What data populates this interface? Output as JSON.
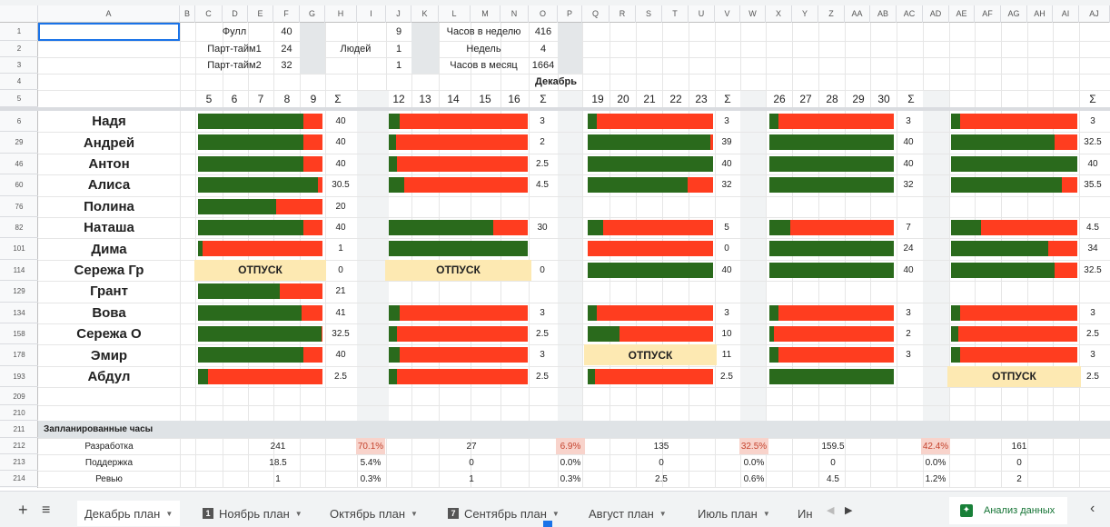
{
  "columns": [
    "A",
    "B",
    "C",
    "D",
    "E",
    "F",
    "G",
    "H",
    "I",
    "J",
    "K",
    "L",
    "M",
    "N",
    "O",
    "P",
    "Q",
    "R",
    "S",
    "T",
    "U",
    "V",
    "W",
    "X",
    "Y",
    "Z",
    "AA",
    "AB",
    "AC",
    "AD",
    "AE",
    "AF",
    "AG",
    "AH",
    "AI",
    "AJ"
  ],
  "header_rows": [
    "1",
    "2",
    "3",
    "4",
    "5"
  ],
  "params": {
    "full_label": "Фулл",
    "full_val": "40",
    "pt1_label": "Парт-тайм1",
    "pt1_val": "24",
    "pt2_label": "Парт-тайм2",
    "pt2_val": "32",
    "people_label": "Людей",
    "people": [
      "9",
      "1",
      "1"
    ],
    "hpw_label": "Часов в неделю",
    "hpw_val": "416",
    "weeks_label": "Недель",
    "weeks_val": "4",
    "hpm_label": "Часов в месяц",
    "hpm_val": "1664",
    "month": "Декабрь"
  },
  "weeks": [
    {
      "days": [
        "5",
        "6",
        "7",
        "8",
        "9"
      ],
      "sigma": "Σ"
    },
    {
      "days": [
        "12",
        "13",
        "14",
        "15",
        "16"
      ],
      "sigma": "Σ"
    },
    {
      "days": [
        "19",
        "20",
        "21",
        "22",
        "23"
      ],
      "sigma": "Σ"
    },
    {
      "days": [
        "26",
        "27",
        "28",
        "29",
        "30"
      ],
      "sigma": "Σ"
    },
    {
      "days": [],
      "sigma": "Σ"
    }
  ],
  "vacation_label": "ОТПУСК",
  "colors": {
    "green": "#2a6a1c",
    "red": "#ff3d1f",
    "vacation": "#fde9b2"
  },
  "people": [
    {
      "row": "6",
      "name": "Надя",
      "weeks": [
        {
          "g": 0.85,
          "s": "40"
        },
        {
          "g": 0.08,
          "s": "3"
        },
        {
          "g": 0.07,
          "s": "3"
        },
        {
          "g": 0.07,
          "s": "3"
        },
        {
          "g": 0.07,
          "s": "3"
        }
      ]
    },
    {
      "row": "29",
      "name": "Андрей",
      "weeks": [
        {
          "g": 0.85,
          "s": "40"
        },
        {
          "g": 0.05,
          "s": "2"
        },
        {
          "g": 0.98,
          "s": "39"
        },
        {
          "g": 1,
          "s": "40"
        },
        {
          "g": 0.82,
          "s": "32.5"
        }
      ]
    },
    {
      "row": "46",
      "name": "Антон",
      "weeks": [
        {
          "g": 0.85,
          "s": "40"
        },
        {
          "g": 0.06,
          "s": "2.5"
        },
        {
          "g": 1,
          "s": "40"
        },
        {
          "g": 1,
          "s": "40"
        },
        {
          "g": 1,
          "s": "40"
        }
      ]
    },
    {
      "row": "60",
      "name": "Алиса",
      "weeks": [
        {
          "g": 0.96,
          "s": "30.5"
        },
        {
          "g": 0.11,
          "s": "4.5"
        },
        {
          "g": 0.8,
          "s": "32"
        },
        {
          "g": 1,
          "s": "32"
        },
        {
          "g": 0.88,
          "s": "35.5"
        }
      ]
    },
    {
      "row": "76",
      "name": "Полина",
      "weeks": [
        {
          "g": 0.63,
          "s": "20"
        },
        null,
        null,
        null,
        null
      ]
    },
    {
      "row": "82",
      "name": "Наташа",
      "weeks": [
        {
          "g": 0.85,
          "s": "40"
        },
        {
          "g": 0.75,
          "s": "30"
        },
        {
          "g": 0.12,
          "s": "5"
        },
        {
          "g": 0.17,
          "s": "7"
        },
        {
          "g": 0.24,
          "s": "4.5"
        }
      ]
    },
    {
      "row": "101",
      "name": "Дима",
      "weeks": [
        {
          "g": 0.04,
          "s": "1"
        },
        {
          "g": 1,
          "s": ""
        },
        {
          "g": 0,
          "s": "0"
        },
        {
          "g": 1,
          "s": "24"
        },
        {
          "g": 0.77,
          "s": "34"
        }
      ]
    },
    {
      "row": "114",
      "name": "Сережа Гр",
      "weeks": [
        {
          "vac": true,
          "s": "0"
        },
        {
          "vac": true,
          "s": "0"
        },
        {
          "g": 1,
          "s": "40"
        },
        {
          "g": 1,
          "s": "40"
        },
        {
          "g": 0.82,
          "s": "32.5"
        }
      ]
    },
    {
      "row": "129",
      "name": "Грант",
      "weeks": [
        {
          "g": 0.66,
          "s": "21"
        },
        null,
        null,
        null,
        null
      ]
    },
    {
      "row": "134",
      "name": "Вова",
      "weeks": [
        {
          "g": 0.83,
          "s": "41"
        },
        {
          "g": 0.08,
          "s": "3"
        },
        {
          "g": 0.07,
          "s": "3"
        },
        {
          "g": 0.07,
          "s": "3"
        },
        {
          "g": 0.07,
          "s": "3"
        }
      ]
    },
    {
      "row": "158",
      "name": "Сережа О",
      "weeks": [
        {
          "g": 0.99,
          "s": "32.5"
        },
        {
          "g": 0.06,
          "s": "2.5"
        },
        {
          "g": 0.25,
          "s": "10"
        },
        {
          "g": 0.04,
          "s": "2"
        },
        {
          "g": 0.06,
          "s": "2.5"
        }
      ]
    },
    {
      "row": "178",
      "name": "Эмир",
      "weeks": [
        {
          "g": 0.85,
          "s": "40"
        },
        {
          "g": 0.08,
          "s": "3"
        },
        {
          "vac": true,
          "s": "11"
        },
        {
          "g": 0.07,
          "s": "3"
        },
        {
          "g": 0.07,
          "s": "3"
        }
      ]
    },
    {
      "row": "193",
      "name": "Абдул",
      "weeks": [
        {
          "g": 0.08,
          "s": "2.5"
        },
        {
          "g": 0.06,
          "s": "2.5"
        },
        {
          "g": 0.06,
          "s": "2.5"
        },
        {
          "g": 1,
          "s": ""
        },
        {
          "vac": true,
          "s": "2.5"
        }
      ]
    }
  ],
  "extra_rows": [
    "209",
    "210"
  ],
  "planned": {
    "row": "211",
    "title": "Запланированные часы",
    "items": [
      {
        "row": "212",
        "label": "Разработка",
        "vals": [
          "241",
          "27",
          "135",
          "159.5",
          "161"
        ],
        "pcts": [
          "70.1%",
          "6.9%",
          "32.5%",
          "42.4%"
        ],
        "hl": true
      },
      {
        "row": "213",
        "label": "Поддержка",
        "vals": [
          "18.5",
          "0",
          "0",
          "0",
          "0"
        ],
        "pcts": [
          "5.4%",
          "0.0%",
          "0.0%",
          "0.0%"
        ],
        "hl": false
      },
      {
        "row": "214",
        "label": "Ревью",
        "vals": [
          "1",
          "1",
          "2.5",
          "4.5",
          "2"
        ],
        "pcts": [
          "0.3%",
          "0.3%",
          "0.6%",
          "1.2%"
        ],
        "hl": false
      }
    ]
  },
  "tabs": {
    "add": "+",
    "list": "≡",
    "items": [
      {
        "label": "Декабрь план",
        "icon": ""
      },
      {
        "label": "Ноябрь план",
        "icon": "1"
      },
      {
        "label": "Октябрь план",
        "icon": ""
      },
      {
        "label": "Сентябрь план",
        "icon": "7"
      },
      {
        "label": "Август план",
        "icon": ""
      },
      {
        "label": "Июль план",
        "icon": ""
      },
      {
        "label": "Ин",
        "icon": ""
      }
    ],
    "explore": "Анализ данных",
    "collapse": "‹"
  }
}
